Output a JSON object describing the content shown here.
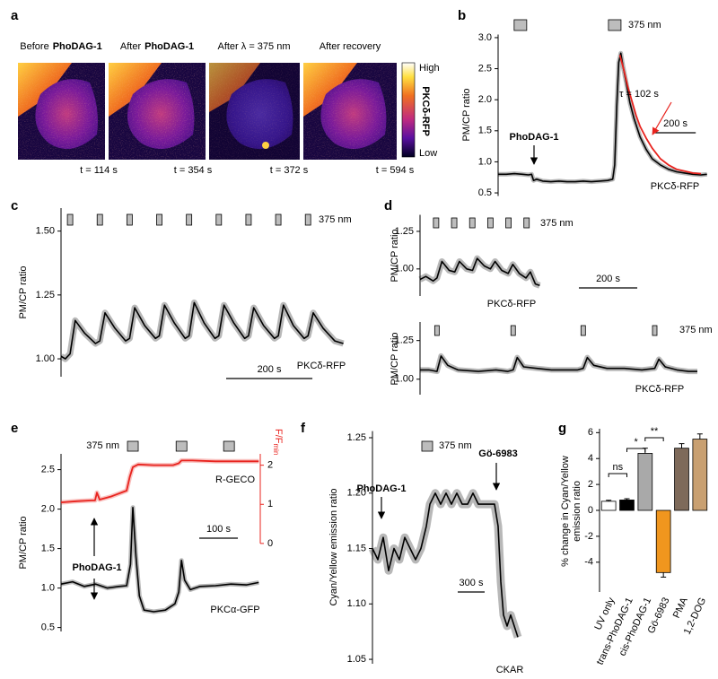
{
  "figure_a": {
    "panel": "a",
    "labels": [
      {
        "text": "Before",
        "bold": "PhoDAG-1"
      },
      {
        "text": "After",
        "bold": "PhoDAG-1"
      },
      {
        "text": "After λ = 375 nm"
      },
      {
        "text": "After recovery"
      }
    ],
    "times": [
      "t = 114 s",
      "t = 354 s",
      "t = 372 s",
      "t = 594 s"
    ],
    "colorbar": {
      "high": "High",
      "low": "Low",
      "label": "PKCδ-RFP"
    }
  },
  "chart_data": [
    {
      "type": "line",
      "panel": "b",
      "ylabel": "PM/CP ratio",
      "xlim": [
        0,
        1040
      ],
      "ylim": [
        0.45,
        3.05
      ],
      "yticks": [
        0.5,
        {
          "value": 1.0,
          "label": "1.0"
        },
        1.5,
        {
          "value": 2.0,
          "label": "2.0"
        },
        2.5,
        {
          "value": 3.0,
          "label": "3.0"
        }
      ],
      "pulses": [
        110,
        575
      ],
      "pulse_label": "375 nm",
      "scalebar": {
        "value": 200,
        "label": "200 s"
      },
      "annotations": [
        "PhoDAG-1",
        "τ = 102 s"
      ],
      "series": [
        {
          "name": "PKCδ-RFP",
          "color": "#000000",
          "x": [
            0,
            40,
            80,
            120,
            150,
            165,
            175,
            190,
            220,
            260,
            300,
            340,
            380,
            420,
            460,
            500,
            540,
            565,
            575,
            585,
            595,
            605,
            615,
            630,
            650,
            670,
            700,
            730,
            760,
            800,
            840,
            880,
            920,
            960,
            1000,
            1030
          ],
          "values": [
            0.8,
            0.8,
            0.81,
            0.8,
            0.79,
            0.8,
            0.7,
            0.72,
            0.69,
            0.68,
            0.69,
            0.68,
            0.68,
            0.69,
            0.68,
            0.69,
            0.7,
            0.72,
            0.95,
            1.9,
            2.6,
            2.75,
            2.55,
            2.3,
            1.95,
            1.7,
            1.4,
            1.2,
            1.05,
            0.95,
            0.88,
            0.84,
            0.82,
            0.8,
            0.79,
            0.8
          ]
        },
        {
          "color": "#e8231e",
          "x": [
            600,
            620,
            640,
            660,
            680,
            700,
            730,
            760,
            800,
            840,
            880,
            920,
            960,
            1000
          ],
          "values": [
            2.72,
            2.48,
            2.2,
            1.98,
            1.75,
            1.57,
            1.38,
            1.22,
            1.05,
            0.95,
            0.88,
            0.85,
            0.82,
            0.81
          ]
        }
      ]
    },
    {
      "type": "line",
      "panel": "c",
      "ylabel": "PM/CP ratio",
      "xlim": [
        0,
        660
      ],
      "ylim": [
        0.93,
        1.59
      ],
      "yticks": [
        {
          "value": 1.0,
          "label": "1.00"
        },
        1.25,
        {
          "value": 1.5,
          "label": "1.50"
        }
      ],
      "pulses": [
        21,
        90,
        159,
        228,
        297,
        366,
        435,
        504,
        573
      ],
      "pulse_label": "375 nm",
      "scalebar": {
        "value": 200,
        "label": "200 s"
      },
      "series": [
        {
          "name": "PKCδ-RFP",
          "color": "#000000",
          "x": [
            0,
            10,
            21,
            33,
            55,
            80,
            90,
            102,
            125,
            150,
            159,
            171,
            194,
            219,
            228,
            240,
            263,
            288,
            297,
            309,
            332,
            357,
            366,
            378,
            401,
            426,
            435,
            447,
            470,
            495,
            504,
            516,
            539,
            564,
            573,
            585,
            608,
            635,
            655
          ],
          "values": [
            1.01,
            1.0,
            1.02,
            1.15,
            1.1,
            1.06,
            1.07,
            1.18,
            1.12,
            1.07,
            1.08,
            1.2,
            1.13,
            1.08,
            1.09,
            1.21,
            1.14,
            1.08,
            1.09,
            1.22,
            1.14,
            1.08,
            1.09,
            1.21,
            1.14,
            1.08,
            1.09,
            1.2,
            1.13,
            1.08,
            1.09,
            1.21,
            1.13,
            1.08,
            1.09,
            1.18,
            1.12,
            1.07,
            1.06
          ]
        }
      ]
    },
    {
      "type": "line",
      "panel": "d",
      "ylabel": "PM/CP ratio",
      "xlim": [
        0,
        990
      ],
      "ylim": [
        0.82,
        1.36
      ],
      "yticks": [
        {
          "value": 1.0,
          "label": "1.00"
        },
        1.25
      ],
      "pulses": [
        55,
        117,
        179,
        241,
        303,
        365
      ],
      "pulse_label": "375 nm",
      "scalebar": {
        "value": 200,
        "label": "200 s"
      },
      "series": [
        {
          "name": "PKCδ-RFP",
          "color": "#000000",
          "x": [
            0,
            20,
            45,
            58,
            75,
            100,
            119,
            135,
            160,
            180,
            196,
            220,
            241,
            257,
            280,
            302,
            318,
            340,
            363,
            378,
            395,
            410
          ],
          "values": [
            0.93,
            0.95,
            0.92,
            0.94,
            1.05,
            0.99,
            0.98,
            1.05,
            1.0,
            0.99,
            1.07,
            1.02,
            1.0,
            1.05,
            0.99,
            0.97,
            1.03,
            0.97,
            0.94,
            0.98,
            0.9,
            0.89
          ]
        }
      ]
    },
    {
      "type": "line",
      "ylabel": "PM/CP ratio",
      "xlim": [
        0,
        990
      ],
      "ylim": [
        0.9,
        1.37
      ],
      "yticks": [
        {
          "value": 1.0,
          "label": "1.00"
        },
        1.25
      ],
      "pulses": [
        58,
        319,
        559,
        804
      ],
      "pulse_label": "375 nm",
      "series": [
        {
          "name": "PKCδ-RFP",
          "color": "#000000",
          "x": [
            0,
            30,
            58,
            72,
            95,
            130,
            200,
            260,
            300,
            319,
            333,
            355,
            400,
            450,
            500,
            540,
            559,
            573,
            595,
            640,
            700,
            760,
            804,
            818,
            840,
            880,
            920,
            950
          ],
          "values": [
            1.06,
            1.06,
            1.05,
            1.15,
            1.09,
            1.06,
            1.05,
            1.06,
            1.05,
            1.06,
            1.14,
            1.08,
            1.07,
            1.06,
            1.06,
            1.06,
            1.07,
            1.14,
            1.09,
            1.07,
            1.07,
            1.06,
            1.07,
            1.13,
            1.08,
            1.06,
            1.05,
            1.05
          ]
        }
      ]
    },
    {
      "type": "line",
      "panel": "e",
      "ylabel": "PM/CP ratio",
      "y2label": {
        "text": "F/F",
        "sub": "min"
      },
      "xlim": [
        0,
        516
      ],
      "ylim": [
        0.45,
        2.7
      ],
      "y2lim": [
        -2.25,
        2.29
      ],
      "yticks": [
        0.5,
        {
          "value": 1.0,
          "label": "1.0"
        },
        1.5,
        {
          "value": 2.0,
          "label": "2.0"
        },
        2.5
      ],
      "y2ticks": [
        0,
        1,
        2
      ],
      "y2color": "#e8231e",
      "pulses": [
        186,
        312,
        435
      ],
      "pulse_label": "375 nm",
      "scalebar": {
        "value": 100,
        "label": "100 s"
      },
      "annotations": [
        "PhoDAG-1"
      ],
      "series": [
        {
          "name": "PKCα-GFP",
          "color": "#000000",
          "x": [
            0,
            30,
            60,
            90,
            120,
            150,
            170,
            180,
            186,
            194,
            203,
            215,
            240,
            270,
            295,
            305,
            312,
            320,
            335,
            360,
            400,
            440,
            480,
            512
          ],
          "values": [
            1.05,
            1.08,
            1.02,
            1.05,
            1.0,
            1.02,
            1.03,
            1.3,
            2.02,
            1.4,
            0.9,
            0.72,
            0.7,
            0.72,
            0.8,
            0.95,
            1.35,
            1.1,
            0.98,
            1.02,
            1.03,
            1.05,
            1.04,
            1.07
          ]
        },
        {
          "name": "R-GECO",
          "color": "#e8231e",
          "axis": "y2",
          "x": [
            0,
            40,
            80,
            88,
            93,
            100,
            130,
            170,
            178,
            186,
            200,
            240,
            290,
            305,
            312,
            340,
            400,
            460,
            512
          ],
          "values": [
            1.05,
            1.08,
            1.1,
            1.1,
            1.3,
            1.12,
            1.2,
            1.35,
            1.7,
            1.95,
            2.02,
            2.0,
            2.0,
            2.05,
            2.12,
            2.12,
            2.1,
            2.1,
            2.1
          ]
        }
      ]
    },
    {
      "type": "line",
      "panel": "f",
      "ylabel": "Cyan/Yellow emission ratio",
      "xlim": [
        0,
        1800
      ],
      "ylim": [
        1.046,
        1.256
      ],
      "yticks": [
        1.05,
        {
          "value": 1.1,
          "label": "1.10"
        },
        1.15,
        {
          "value": 1.2,
          "label": "1.20"
        },
        1.25
      ],
      "pulses": [
        610
      ],
      "pulse_label": "375 nm",
      "scalebar": {
        "value": 300,
        "label": "300 s"
      },
      "annotations": [
        "PhoDAG-1",
        "Gö-6983"
      ],
      "series": [
        {
          "name": "CKAR",
          "color": "#000000",
          "x": [
            0,
            60,
            120,
            180,
            240,
            300,
            360,
            420,
            480,
            540,
            600,
            640,
            700,
            760,
            820,
            880,
            940,
            1000,
            1060,
            1120,
            1180,
            1240,
            1300,
            1360,
            1400,
            1430,
            1460,
            1500,
            1540,
            1580,
            1620
          ],
          "values": [
            1.15,
            1.14,
            1.16,
            1.13,
            1.15,
            1.14,
            1.16,
            1.15,
            1.14,
            1.15,
            1.17,
            1.19,
            1.2,
            1.19,
            1.2,
            1.19,
            1.2,
            1.19,
            1.19,
            1.2,
            1.19,
            1.19,
            1.19,
            1.19,
            1.17,
            1.12,
            1.09,
            1.08,
            1.09,
            1.08,
            1.07
          ]
        }
      ]
    },
    {
      "type": "bar",
      "panel": "g",
      "ylabel": [
        "% change in Cyan/Yellow",
        "emission ratio"
      ],
      "ylim": [
        -6.3,
        6.3
      ],
      "yticks": [
        6,
        4,
        2,
        0,
        -2,
        -4
      ],
      "categories": [
        "UV only",
        "trans-PhoDAG-1",
        "cis-PhoDAG-1",
        "Gö-6983",
        "PMA",
        "1,2-DOG"
      ],
      "values": [
        0.7,
        0.8,
        4.4,
        -4.8,
        4.8,
        5.5
      ],
      "errors": [
        0.08,
        0.1,
        0.4,
        0.35,
        0.35,
        0.4
      ],
      "colors": [
        "#ffffff",
        "#000000",
        "#a9a9a9",
        "#f0961e",
        "#7e6a5a",
        "#c9a071"
      ],
      "significance": [
        "ns",
        "*",
        "**"
      ]
    }
  ]
}
